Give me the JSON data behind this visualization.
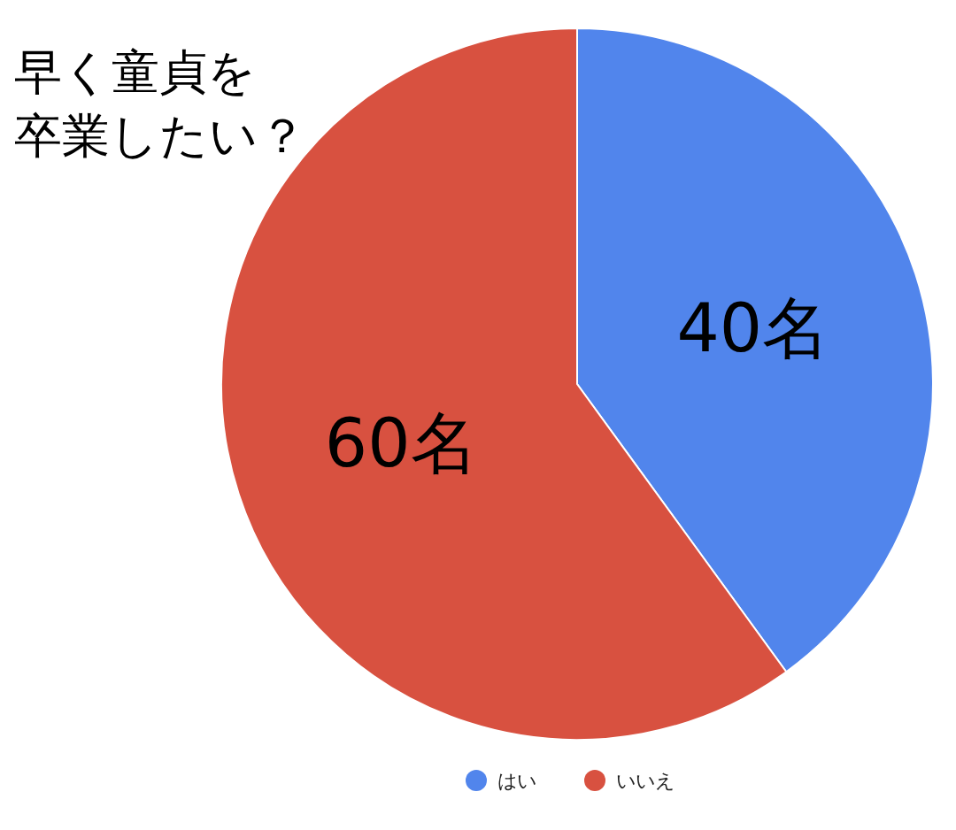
{
  "chart_data": {
    "type": "pie",
    "title": "早く童貞を卒業したい？",
    "categories": [
      "はい",
      "いいえ"
    ],
    "values": [
      40,
      60
    ],
    "value_labels": [
      "40名",
      "60名"
    ],
    "colors": [
      "#5185ec",
      "#d85140"
    ],
    "legend": "bottom"
  }
}
